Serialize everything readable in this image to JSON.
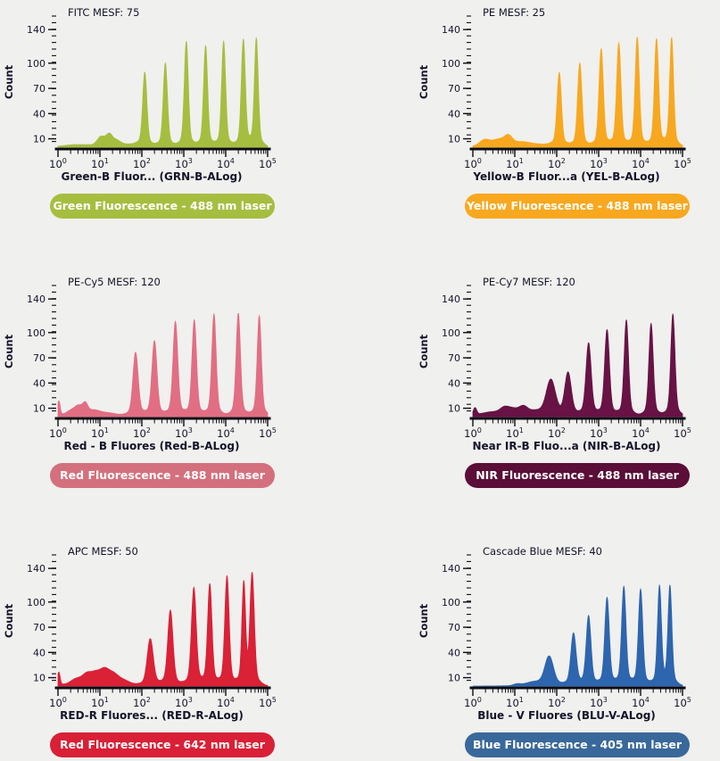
{
  "page": {
    "background_color": "#f0f0ee",
    "text_color": "#14142b",
    "axis_color": "#0c0c14"
  },
  "chart_data": [
    {
      "type": "area",
      "title": "FITC MESF: 75",
      "xlabel": "Green-B Fluor... (GRN-B-ALog)",
      "ylabel": "Count",
      "x_axis": {
        "scale": "log10",
        "tick_base": "10",
        "exponents": [
          0,
          1,
          2,
          3,
          4,
          5
        ]
      },
      "y_axis": {
        "ticks": [
          10,
          40,
          70,
          100,
          140
        ],
        "max": 155
      },
      "color": "#a6be3f",
      "badge": {
        "label": "Green Fluorescence - 488 nm laser",
        "color": "#a6be3f",
        "text_color": "#ffffff"
      },
      "peaks": [
        {
          "log_x": 0.45,
          "count": 3,
          "sigma": 0.3
        },
        {
          "log_x": 1.03,
          "count": 11,
          "sigma": 0.09
        },
        {
          "log_x": 1.22,
          "count": 12,
          "sigma": 0.07
        },
        {
          "log_x": 1.38,
          "count": 6,
          "sigma": 0.1
        },
        {
          "log_x": 1.7,
          "count": 3,
          "sigma": 0.25
        },
        {
          "log_x": 2.07,
          "count": 88,
          "sigma": 0.048
        },
        {
          "log_x": 2.56,
          "count": 100,
          "sigma": 0.048
        },
        {
          "log_x": 3.06,
          "count": 126,
          "sigma": 0.046
        },
        {
          "log_x": 3.52,
          "count": 121,
          "sigma": 0.046
        },
        {
          "log_x": 3.95,
          "count": 126,
          "sigma": 0.046
        },
        {
          "log_x": 4.42,
          "count": 128,
          "sigma": 0.046
        },
        {
          "log_x": 4.73,
          "count": 129,
          "sigma": 0.044
        }
      ]
    },
    {
      "type": "area",
      "title": "PE MESF: 25",
      "xlabel": "Yellow-B Fluor...a (YEL-B-ALog)",
      "ylabel": "Count",
      "x_axis": {
        "scale": "log10",
        "tick_base": "10",
        "exponents": [
          0,
          1,
          2,
          3,
          4,
          5
        ]
      },
      "y_axis": {
        "ticks": [
          10,
          40,
          70,
          100,
          140
        ],
        "max": 155
      },
      "color": "#f8a81f",
      "badge": {
        "label": "Yellow Fluorescence - 488 nm laser",
        "color": "#f8a81f",
        "text_color": "#ffffff"
      },
      "peaks": [
        {
          "log_x": 0.28,
          "count": 8,
          "sigma": 0.12
        },
        {
          "log_x": 0.62,
          "count": 8,
          "sigma": 0.15
        },
        {
          "log_x": 0.85,
          "count": 10,
          "sigma": 0.09
        },
        {
          "log_x": 1.15,
          "count": 5,
          "sigma": 0.2
        },
        {
          "log_x": 1.6,
          "count": 3,
          "sigma": 0.25
        },
        {
          "log_x": 2.06,
          "count": 88,
          "sigma": 0.05
        },
        {
          "log_x": 2.55,
          "count": 100,
          "sigma": 0.05
        },
        {
          "log_x": 3.06,
          "count": 117,
          "sigma": 0.05
        },
        {
          "log_x": 3.48,
          "count": 124,
          "sigma": 0.05
        },
        {
          "log_x": 3.92,
          "count": 131,
          "sigma": 0.048
        },
        {
          "log_x": 4.38,
          "count": 129,
          "sigma": 0.048
        },
        {
          "log_x": 4.74,
          "count": 130,
          "sigma": 0.045
        }
      ]
    },
    {
      "type": "area",
      "title": "PE-Cy5 MESF: 120",
      "xlabel": "Red - B Fluores (Red-B-ALog)",
      "ylabel": "Count",
      "x_axis": {
        "scale": "log10",
        "tick_base": "10",
        "exponents": [
          0,
          1,
          2,
          3,
          4,
          5
        ]
      },
      "y_axis": {
        "ticks": [
          10,
          40,
          70,
          100,
          140
        ],
        "max": 155
      },
      "color": "#e26e83",
      "badge": {
        "label": "Red Fluorescence - 488 nm laser",
        "color": "#d4707d",
        "text_color": "#ffffff"
      },
      "peaks": [
        {
          "log_x": 0.02,
          "count": 18,
          "sigma": 0.03
        },
        {
          "log_x": 0.33,
          "count": 7,
          "sigma": 0.12
        },
        {
          "log_x": 0.5,
          "count": 9,
          "sigma": 0.08
        },
        {
          "log_x": 0.65,
          "count": 12,
          "sigma": 0.06
        },
        {
          "log_x": 0.85,
          "count": 6,
          "sigma": 0.15
        },
        {
          "log_x": 1.2,
          "count": 4,
          "sigma": 0.2
        },
        {
          "log_x": 1.85,
          "count": 76,
          "sigma": 0.06
        },
        {
          "log_x": 2.3,
          "count": 90,
          "sigma": 0.058
        },
        {
          "log_x": 2.8,
          "count": 113,
          "sigma": 0.055
        },
        {
          "log_x": 3.25,
          "count": 115,
          "sigma": 0.052
        },
        {
          "log_x": 3.72,
          "count": 122,
          "sigma": 0.05
        },
        {
          "log_x": 4.3,
          "count": 123,
          "sigma": 0.05
        },
        {
          "log_x": 4.8,
          "count": 120,
          "sigma": 0.048
        }
      ]
    },
    {
      "type": "area",
      "title": "PE-Cy7 MESF: 120",
      "xlabel": "Near IR-B Fluo...a (NIR-B-ALog)",
      "ylabel": "Count",
      "x_axis": {
        "scale": "log10",
        "tick_base": "10",
        "exponents": [
          0,
          1,
          2,
          3,
          4,
          5
        ]
      },
      "y_axis": {
        "ticks": [
          10,
          40,
          70,
          100,
          140
        ],
        "max": 155
      },
      "color": "#681245",
      "badge": {
        "label": "NIR Fluorescence - 488 nm laser",
        "color": "#5b0e38",
        "text_color": "#ffffff"
      },
      "peaks": [
        {
          "log_x": 0.05,
          "count": 9,
          "sigma": 0.04
        },
        {
          "log_x": 0.45,
          "count": 5,
          "sigma": 0.25
        },
        {
          "log_x": 0.75,
          "count": 7,
          "sigma": 0.1
        },
        {
          "log_x": 0.95,
          "count": 7,
          "sigma": 0.12
        },
        {
          "log_x": 1.2,
          "count": 9,
          "sigma": 0.1
        },
        {
          "log_x": 1.5,
          "count": 5,
          "sigma": 0.22
        },
        {
          "log_x": 1.86,
          "count": 42,
          "sigma": 0.105
        },
        {
          "log_x": 2.27,
          "count": 51,
          "sigma": 0.075
        },
        {
          "log_x": 2.76,
          "count": 87,
          "sigma": 0.06
        },
        {
          "log_x": 3.2,
          "count": 103,
          "sigma": 0.055
        },
        {
          "log_x": 3.66,
          "count": 115,
          "sigma": 0.05
        },
        {
          "log_x": 4.25,
          "count": 111,
          "sigma": 0.05
        },
        {
          "log_x": 4.77,
          "count": 122,
          "sigma": 0.048
        }
      ]
    },
    {
      "type": "area",
      "title": "APC MESF: 50",
      "xlabel": "RED-R Fluores... (RED-R-ALog)",
      "ylabel": "Count",
      "x_axis": {
        "scale": "log10",
        "tick_base": "10",
        "exponents": [
          0,
          1,
          2,
          3,
          4,
          5
        ]
      },
      "y_axis": {
        "ticks": [
          10,
          40,
          70,
          100,
          140
        ],
        "max": 155
      },
      "color": "#da2136",
      "badge": {
        "label": "Red Fluorescence - 642 nm laser",
        "color": "#d92036",
        "text_color": "#ffffff"
      },
      "peaks": [
        {
          "log_x": 0.02,
          "count": 16,
          "sigma": 0.03
        },
        {
          "log_x": 0.45,
          "count": 8,
          "sigma": 0.15
        },
        {
          "log_x": 0.7,
          "count": 11,
          "sigma": 0.1
        },
        {
          "log_x": 0.9,
          "count": 12,
          "sigma": 0.1
        },
        {
          "log_x": 1.1,
          "count": 15,
          "sigma": 0.1
        },
        {
          "log_x": 1.3,
          "count": 12,
          "sigma": 0.12
        },
        {
          "log_x": 1.55,
          "count": 6,
          "sigma": 0.15
        },
        {
          "log_x": 2.2,
          "count": 56,
          "sigma": 0.07
        },
        {
          "log_x": 2.68,
          "count": 90,
          "sigma": 0.06
        },
        {
          "log_x": 3.24,
          "count": 117,
          "sigma": 0.055
        },
        {
          "log_x": 3.62,
          "count": 121,
          "sigma": 0.05
        },
        {
          "log_x": 4.03,
          "count": 131,
          "sigma": 0.05
        },
        {
          "log_x": 4.43,
          "count": 120,
          "sigma": 0.042
        },
        {
          "log_x": 4.63,
          "count": 132,
          "sigma": 0.05
        }
      ]
    },
    {
      "type": "area",
      "title": "Cascade Blue MESF: 40",
      "xlabel": "Blue - V Fluores (BLU-V-ALog)",
      "ylabel": "Count",
      "x_axis": {
        "scale": "log10",
        "tick_base": "10",
        "exponents": [
          0,
          1,
          2,
          3,
          4,
          5
        ]
      },
      "y_axis": {
        "ticks": [
          10,
          40,
          70,
          100,
          140
        ],
        "max": 155
      },
      "color": "#2d65ae",
      "badge": {
        "label": "Blue Fluorescence - 405 nm laser",
        "color": "#39689b",
        "text_color": "#ffffff"
      },
      "peaks": [
        {
          "log_x": 1.05,
          "count": 2,
          "sigma": 0.08
        },
        {
          "log_x": 1.45,
          "count": 4,
          "sigma": 0.2
        },
        {
          "log_x": 1.82,
          "count": 35,
          "sigma": 0.1
        },
        {
          "log_x": 2.4,
          "count": 62,
          "sigma": 0.06
        },
        {
          "log_x": 2.76,
          "count": 83,
          "sigma": 0.055
        },
        {
          "log_x": 3.2,
          "count": 105,
          "sigma": 0.052
        },
        {
          "log_x": 3.6,
          "count": 118,
          "sigma": 0.05
        },
        {
          "log_x": 4.0,
          "count": 115,
          "sigma": 0.05
        },
        {
          "log_x": 4.45,
          "count": 118,
          "sigma": 0.045
        },
        {
          "log_x": 4.7,
          "count": 118,
          "sigma": 0.045
        }
      ]
    }
  ]
}
